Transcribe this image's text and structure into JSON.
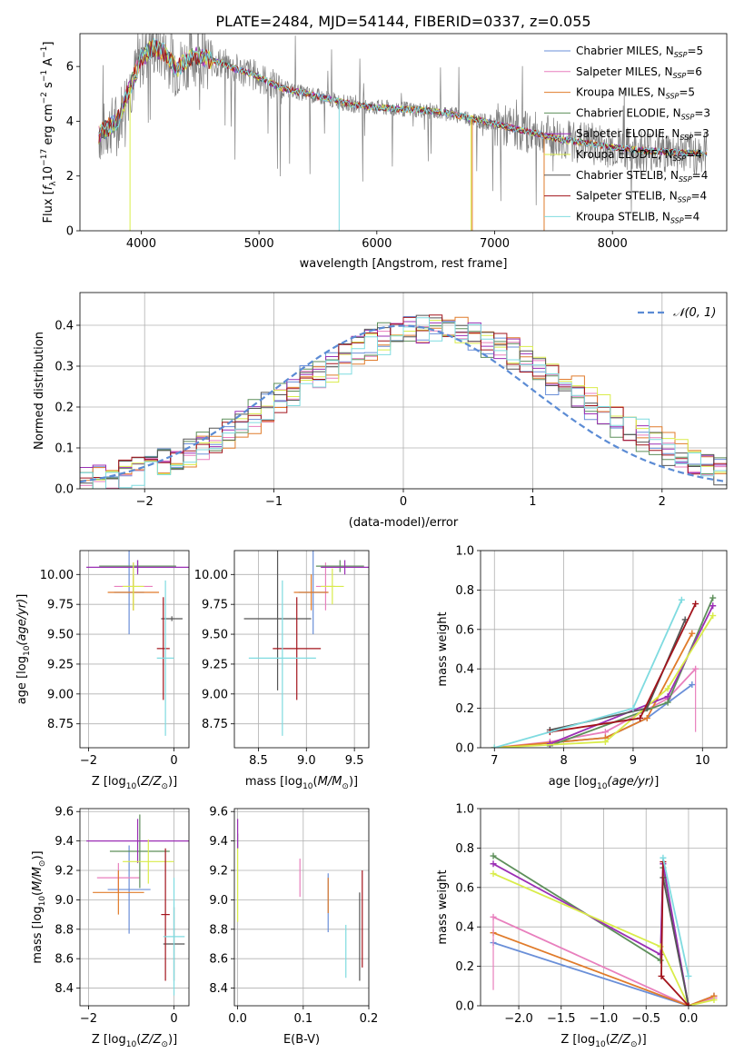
{
  "title": "PLATE=2484, MJD=54144, FIBERID=0337, z=0.055",
  "colors": {
    "Chabrier MILES": "#6a8fd8",
    "Salpeter MILES": "#e87fbd",
    "Kroupa MILES": "#e07b2a",
    "Chabrier ELODIE": "#5d8f5a",
    "Salpeter ELODIE": "#9b2fb5",
    "Kroupa ELODIE": "#d9ec4a",
    "Chabrier STELIB": "#555555",
    "Salpeter STELIB": "#a3141c",
    "Kroupa STELIB": "#7fdbe0",
    "data": "#7f7f7f",
    "normal": "#5b8bd4"
  },
  "legend_spectrum": [
    {
      "name": "Chabrier MILES",
      "pre": "Chabrier MILES, N",
      "sub": "SSP",
      "post": "=5"
    },
    {
      "name": "Salpeter MILES",
      "pre": "Salpeter MILES, N",
      "sub": "SSP",
      "post": "=6"
    },
    {
      "name": "Kroupa MILES",
      "pre": "Kroupa MILES, N",
      "sub": "SSP",
      "post": "=5"
    },
    {
      "name": "Chabrier ELODIE",
      "pre": "Chabrier ELODIE, N",
      "sub": "SSP",
      "post": "=3"
    },
    {
      "name": "Salpeter ELODIE",
      "pre": "Salpeter ELODIE, N",
      "sub": "SSP",
      "post": "=3"
    },
    {
      "name": "Kroupa ELODIE",
      "pre": "Kroupa ELODIE, N",
      "sub": "SSP",
      "post": "=4"
    },
    {
      "name": "Chabrier STELIB",
      "pre": "Chabrier STELIB, N",
      "sub": "SSP",
      "post": "=4"
    },
    {
      "name": "Salpeter STELIB",
      "pre": "Salpeter STELIB, N",
      "sub": "SSP",
      "post": "=4"
    },
    {
      "name": "Kroupa STELIB",
      "pre": "Kroupa STELIB, N",
      "sub": "SSP",
      "post": "=4"
    }
  ],
  "chart_data": [
    {
      "id": "spectrum",
      "type": "line",
      "title": "PLATE=2484, MJD=54144, FIBERID=0337, z=0.055",
      "xlabel": "wavelength [Angstrom, rest frame]",
      "ylabel": {
        "pre": "Flux [",
        "f": "f",
        "fsub": "λ",
        "unit": "10",
        "exp": "−17",
        "mid": " erg cm",
        "exp2": "−2",
        "mid2": " s",
        "exp3": "−1",
        "mid3": " A",
        "exp4": "−1",
        "post": "]"
      },
      "xlim": [
        3480,
        8970
      ],
      "ylim": [
        0,
        7.2
      ],
      "xticks": [
        4000,
        5000,
        6000,
        7000,
        8000
      ],
      "yticks": [
        0,
        2,
        4,
        6
      ],
      "grid": false,
      "legend_position": "top-right",
      "continuum": {
        "x": [
          3640,
          3700,
          3800,
          3900,
          4000,
          4100,
          4200,
          4300,
          4400,
          4500,
          4600,
          4700,
          4800,
          4900,
          5000,
          5200,
          5400,
          5600,
          5800,
          6000,
          6200,
          6400,
          6600,
          6800,
          7000,
          7200,
          7400,
          7600,
          7800,
          8000,
          8200,
          8400,
          8600,
          8800
        ],
        "y": [
          3.5,
          3.7,
          4.0,
          5.2,
          6.3,
          6.7,
          6.5,
          5.9,
          6.3,
          6.4,
          6.2,
          6.1,
          5.9,
          5.8,
          5.6,
          5.2,
          5.0,
          4.8,
          4.6,
          4.5,
          4.45,
          4.4,
          4.3,
          4.1,
          3.9,
          3.7,
          3.5,
          3.3,
          3.2,
          3.05,
          2.95,
          2.9,
          2.85,
          2.8
        ]
      }
    },
    {
      "id": "residuals",
      "type": "line",
      "xlabel": "(data-model)/error",
      "ylabel": "Normed distribution",
      "xlim": [
        -2.5,
        2.5
      ],
      "ylim": [
        0,
        0.48
      ],
      "xticks": [
        -2,
        -1,
        0,
        1,
        2
      ],
      "yticks": [
        0.0,
        0.1,
        0.2,
        0.3,
        0.4
      ],
      "grid": true,
      "legend": "𝒩(0, 1)",
      "legend_position": "top-right",
      "normal": {
        "mean": 0,
        "sigma": 1
      }
    },
    {
      "id": "Z-age",
      "type": "scatter",
      "xlabel": {
        "pre": "Z [log",
        "sub": "10",
        "mid": "(",
        "it": "Z/Z",
        "isub": "⊙",
        "post": ")]"
      },
      "ylabel": {
        "pre": "age  [log",
        "sub": "10",
        "it": "(age/yr)",
        "post": "]"
      },
      "xlim": [
        -2.2,
        0.35
      ],
      "ylim": [
        8.55,
        10.2
      ],
      "xticks": [
        -2,
        0
      ],
      "yticks": [
        8.75,
        9.0,
        9.25,
        9.5,
        9.75,
        10.0
      ],
      "grid": true,
      "points": [
        {
          "name": "Chabrier MILES",
          "x": -1.05,
          "xerr": 0.35,
          "y": 9.85,
          "yerr": 0.35
        },
        {
          "name": "Salpeter MILES",
          "x": -0.95,
          "xerr": 0.45,
          "y": 9.9,
          "yerr": 0.2
        },
        {
          "name": "Kroupa MILES",
          "x": -0.95,
          "xerr": 0.6,
          "y": 9.85,
          "yerr": 0.15
        },
        {
          "name": "Chabrier ELODIE",
          "x": -0.85,
          "xerr": 0.9,
          "y": 10.07,
          "yerr": 0.05
        },
        {
          "name": "Salpeter ELODIE",
          "x": -0.85,
          "xerr": 1.2,
          "y": 10.06,
          "yerr": 0.06
        },
        {
          "name": "Kroupa ELODIE",
          "x": -0.95,
          "xerr": 0.25,
          "y": 9.9,
          "yerr": 0.2
        },
        {
          "name": "Chabrier STELIB",
          "x": -0.05,
          "xerr": 0.25,
          "y": 9.63,
          "yerr": 0.02
        },
        {
          "name": "Salpeter STELIB",
          "x": -0.25,
          "xerr": 0.15,
          "y": 9.38,
          "yerr": 0.43
        },
        {
          "name": "Kroupa STELIB",
          "x": -0.2,
          "xerr": 0.2,
          "y": 9.3,
          "yerr": 0.65
        }
      ]
    },
    {
      "id": "mass-age",
      "type": "scatter",
      "xlabel": {
        "pre": "mass [log",
        "sub": "10",
        "mid": "(",
        "it": "M/M",
        "isub": "⊙",
        "post": ")]"
      },
      "ylabel": "",
      "xlim": [
        8.25,
        9.65
      ],
      "ylim": [
        8.55,
        10.2
      ],
      "xticks": [
        8.5,
        9.0,
        9.5
      ],
      "yticks": [
        8.75,
        9.0,
        9.25,
        9.5,
        9.75,
        10.0
      ],
      "grid": true,
      "points": [
        {
          "name": "Chabrier MILES",
          "x": 9.07,
          "xerr": 0.15,
          "y": 9.85,
          "yerr": 0.35
        },
        {
          "name": "Salpeter MILES",
          "x": 9.2,
          "xerr": 0.1,
          "y": 9.9,
          "yerr": 0.2
        },
        {
          "name": "Kroupa MILES",
          "x": 9.05,
          "xerr": 0.18,
          "y": 9.85,
          "yerr": 0.15
        },
        {
          "name": "Chabrier ELODIE",
          "x": 9.35,
          "xerr": 0.25,
          "y": 10.07,
          "yerr": 0.05
        },
        {
          "name": "Salpeter ELODIE",
          "x": 9.4,
          "xerr": 0.25,
          "y": 10.06,
          "yerr": 0.06
        },
        {
          "name": "Kroupa ELODIE",
          "x": 9.27,
          "xerr": 0.12,
          "y": 9.9,
          "yerr": 0.15
        },
        {
          "name": "Chabrier STELIB",
          "x": 8.7,
          "xerr": 0.35,
          "y": 9.63,
          "yerr": 0.6
        },
        {
          "name": "Salpeter STELIB",
          "x": 8.9,
          "xerr": 0.25,
          "y": 9.38,
          "yerr": 0.43
        },
        {
          "name": "Kroupa STELIB",
          "x": 8.75,
          "xerr": 0.35,
          "y": 9.3,
          "yerr": 0.65
        }
      ]
    },
    {
      "id": "age-weight",
      "type": "line",
      "xlabel": {
        "pre": "age  [log",
        "sub": "10",
        "it": "(age/yr)",
        "post": "]"
      },
      "ylabel": "mass weight",
      "xlim": [
        6.8,
        10.35
      ],
      "ylim": [
        0,
        1.0
      ],
      "xticks": [
        7,
        8,
        9,
        10
      ],
      "yticks": [
        0.0,
        0.2,
        0.4,
        0.6,
        0.8,
        1.0
      ],
      "grid": true,
      "series": [
        {
          "name": "Chabrier MILES",
          "x": [
            7.0,
            8.6,
            9.2,
            9.85
          ],
          "y": [
            0.0,
            0.05,
            0.15,
            0.32
          ]
        },
        {
          "name": "Salpeter MILES",
          "x": [
            7.0,
            7.8,
            8.6,
            9.5,
            9.9
          ],
          "y": [
            0.0,
            0.03,
            0.08,
            0.25,
            0.4
          ]
        },
        {
          "name": "Kroupa MILES",
          "x": [
            7.0,
            8.6,
            9.2,
            9.85
          ],
          "y": [
            0.0,
            0.05,
            0.15,
            0.58
          ]
        },
        {
          "name": "Chabrier ELODIE",
          "x": [
            7.8,
            9.5,
            10.15
          ],
          "y": [
            0.01,
            0.23,
            0.76
          ]
        },
        {
          "name": "Salpeter ELODIE",
          "x": [
            7.8,
            9.5,
            10.15
          ],
          "y": [
            0.02,
            0.26,
            0.72
          ]
        },
        {
          "name": "Kroupa ELODIE",
          "x": [
            7.0,
            8.6,
            9.5,
            10.15
          ],
          "y": [
            0.0,
            0.03,
            0.3,
            0.67
          ]
        },
        {
          "name": "Chabrier STELIB",
          "x": [
            7.8,
            9.2,
            9.75
          ],
          "y": [
            0.09,
            0.2,
            0.65
          ]
        },
        {
          "name": "Salpeter STELIB",
          "x": [
            7.8,
            9.1,
            9.9
          ],
          "y": [
            0.08,
            0.15,
            0.73
          ]
        },
        {
          "name": "Kroupa STELIB",
          "x": [
            7.0,
            9.0,
            9.7
          ],
          "y": [
            0.0,
            0.2,
            0.75
          ]
        }
      ]
    },
    {
      "id": "Z-mass",
      "type": "scatter",
      "xlabel": {
        "pre": "Z [log",
        "sub": "10",
        "mid": "(",
        "it": "Z/Z",
        "isub": "⊙",
        "post": ")]"
      },
      "ylabel": {
        "pre": "mass [log",
        "sub": "10",
        "mid": "(",
        "it": "M/M",
        "isub": "⊙",
        "post": ")]"
      },
      "xlim": [
        -2.2,
        0.35
      ],
      "ylim": [
        8.28,
        9.62
      ],
      "xticks": [
        -2,
        0
      ],
      "yticks": [
        8.4,
        8.6,
        8.8,
        9.0,
        9.2,
        9.4,
        9.6
      ],
      "grid": true,
      "points": [
        {
          "name": "Chabrier MILES",
          "x": -1.05,
          "xerr": 0.5,
          "y": 9.07,
          "yerr": 0.3
        },
        {
          "name": "Salpeter MILES",
          "x": -1.3,
          "xerr": 0.5,
          "y": 9.15,
          "yerr": 0.1
        },
        {
          "name": "Kroupa MILES",
          "x": -1.3,
          "xerr": 0.6,
          "y": 9.05,
          "yerr": 0.15
        },
        {
          "name": "Chabrier ELODIE",
          "x": -0.8,
          "xerr": 0.7,
          "y": 9.33,
          "yerr": 0.25
        },
        {
          "name": "Salpeter ELODIE",
          "x": -0.85,
          "xerr": 1.2,
          "y": 9.4,
          "yerr": 0.15
        },
        {
          "name": "Kroupa ELODIE",
          "x": -0.6,
          "xerr": 0.6,
          "y": 9.26,
          "yerr": 0.15
        },
        {
          "name": "Chabrier STELIB",
          "x": 0.0,
          "xerr": 0.25,
          "y": 8.7,
          "yerr": 0.25
        },
        {
          "name": "Salpeter STELIB",
          "x": -0.2,
          "xerr": 0.1,
          "y": 8.9,
          "yerr": 0.45
        },
        {
          "name": "Kroupa STELIB",
          "x": 0.0,
          "xerr": 0.25,
          "y": 8.75,
          "yerr": 0.4
        }
      ]
    },
    {
      "id": "ebv-mass",
      "type": "scatter",
      "xlabel": "E(B-V)",
      "ylabel": "",
      "xlim": [
        -0.005,
        0.2
      ],
      "ylim": [
        8.28,
        9.62
      ],
      "xticks": [
        0.0,
        0.1,
        0.2
      ],
      "yticks": [
        8.4,
        8.6,
        8.8,
        9.0,
        9.2,
        9.4,
        9.6
      ],
      "grid": true,
      "points": [
        {
          "name": "Chabrier MILES",
          "x": 0.138,
          "xerr": 0,
          "y": 8.98,
          "yerr": 0.2
        },
        {
          "name": "Salpeter MILES",
          "x": 0.095,
          "xerr": 0,
          "y": 9.15,
          "yerr": 0.13
        },
        {
          "name": "Kroupa MILES",
          "x": 0.138,
          "xerr": 0,
          "y": 9.03,
          "yerr": 0.12
        },
        {
          "name": "Chabrier ELODIE",
          "x": 0.0,
          "xerr": 0,
          "y": 9.4,
          "yerr": 0.05
        },
        {
          "name": "Salpeter ELODIE",
          "x": 0.0,
          "xerr": 0,
          "y": 9.45,
          "yerr": 0.1
        },
        {
          "name": "Kroupa ELODIE",
          "x": 0.0,
          "xerr": 0,
          "y": 9.1,
          "yerr": 0.25
        },
        {
          "name": "Chabrier STELIB",
          "x": 0.186,
          "xerr": 0,
          "y": 8.75,
          "yerr": 0.3
        },
        {
          "name": "Salpeter STELIB",
          "x": 0.19,
          "xerr": 0,
          "y": 8.87,
          "yerr": 0.33
        },
        {
          "name": "Kroupa STELIB",
          "x": 0.165,
          "xerr": 0,
          "y": 8.65,
          "yerr": 0.18
        }
      ]
    },
    {
      "id": "Z-weight",
      "type": "line",
      "xlabel": {
        "pre": "Z [log",
        "sub": "10",
        "mid": "(",
        "it": "Z/Z",
        "isub": "⊙",
        "post": ")]"
      },
      "ylabel": "mass weight",
      "xlim": [
        -2.45,
        0.45
      ],
      "ylim": [
        0,
        1.0
      ],
      "xticks": [
        -2.0,
        -1.5,
        -1.0,
        -0.5,
        0.0
      ],
      "yticks": [
        0.0,
        0.2,
        0.4,
        0.6,
        0.8,
        1.0
      ],
      "grid": true,
      "series": [
        {
          "name": "Chabrier MILES",
          "x": [
            -2.3,
            0.0,
            0.3
          ],
          "y": [
            0.32,
            0.0,
            0.05
          ]
        },
        {
          "name": "Salpeter MILES",
          "x": [
            -2.3,
            0.0,
            0.3
          ],
          "y": [
            0.45,
            0.0,
            0.04
          ]
        },
        {
          "name": "Kroupa MILES",
          "x": [
            -2.3,
            0.0,
            0.3
          ],
          "y": [
            0.37,
            0.0,
            0.05
          ]
        },
        {
          "name": "Chabrier ELODIE",
          "x": [
            -2.3,
            -0.33,
            -0.3,
            0.0
          ],
          "y": [
            0.76,
            0.23,
            0.7,
            0.0
          ]
        },
        {
          "name": "Salpeter ELODIE",
          "x": [
            -2.3,
            -0.33,
            -0.3,
            0.0
          ],
          "y": [
            0.72,
            0.26,
            0.72,
            0.0
          ]
        },
        {
          "name": "Kroupa ELODIE",
          "x": [
            -2.3,
            -0.33,
            0.0,
            0.3
          ],
          "y": [
            0.67,
            0.3,
            0.0,
            0.03
          ]
        },
        {
          "name": "Chabrier STELIB",
          "x": [
            -0.3,
            0.0
          ],
          "y": [
            0.65,
            0.0
          ]
        },
        {
          "name": "Salpeter STELIB",
          "x": [
            -0.3,
            -0.32,
            0.0
          ],
          "y": [
            0.73,
            0.15,
            0.0
          ]
        },
        {
          "name": "Kroupa STELIB",
          "x": [
            -0.3,
            0.0
          ],
          "y": [
            0.75,
            0.15
          ]
        }
      ]
    }
  ]
}
